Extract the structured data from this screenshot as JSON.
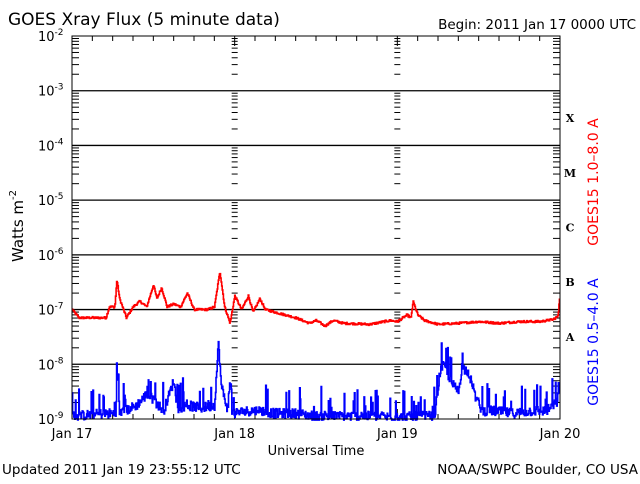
{
  "chart_data": {
    "type": "line",
    "title": "GOES Xray Flux (5 minute data)",
    "begin_label": "Begin:  2011 Jan 17 0000 UTC",
    "xlabel": "Universal Time",
    "ylabel": "Watts m",
    "ylabel_sup": "-2",
    "x_unit": "hours since 2011 Jan 17 0000 UTC",
    "xlim": [
      0,
      72
    ],
    "x_ticks": [
      {
        "h": 0,
        "label": "Jan 17"
      },
      {
        "h": 24,
        "label": "Jan 18"
      },
      {
        "h": 48,
        "label": "Jan 19"
      },
      {
        "h": 72,
        "label": "Jan 20"
      }
    ],
    "y_scale": "log",
    "ylim": [
      1e-09,
      0.01
    ],
    "y_ticks": [
      {
        "exp": -2,
        "label": "-2"
      },
      {
        "exp": -3,
        "label": "-3"
      },
      {
        "exp": -4,
        "label": "-4"
      },
      {
        "exp": -5,
        "label": "-5"
      },
      {
        "exp": -6,
        "label": "-6"
      },
      {
        "exp": -7,
        "label": "-7"
      },
      {
        "exp": -8,
        "label": "-8"
      },
      {
        "exp": -9,
        "label": "-9"
      }
    ],
    "flare_classes": [
      {
        "label": "X",
        "exp": -4
      },
      {
        "label": "M",
        "exp": -5
      },
      {
        "label": "C",
        "exp": -6
      },
      {
        "label": "B",
        "exp": -7
      },
      {
        "label": "A",
        "exp": -8
      }
    ],
    "series": [
      {
        "name": "GOES15 1.0–8.0 A",
        "color": "#ff0000",
        "noise": 0.04,
        "points_log10": [
          [
            0,
            -7.0
          ],
          [
            1,
            -7.15
          ],
          [
            5,
            -7.15
          ],
          [
            5.5,
            -6.95
          ],
          [
            6.3,
            -6.95
          ],
          [
            6.6,
            -6.45
          ],
          [
            7,
            -6.8
          ],
          [
            8,
            -7.15
          ],
          [
            9,
            -6.95
          ],
          [
            10,
            -6.85
          ],
          [
            11,
            -6.95
          ],
          [
            12,
            -6.55
          ],
          [
            12.5,
            -6.8
          ],
          [
            13.2,
            -6.6
          ],
          [
            14,
            -6.95
          ],
          [
            15,
            -6.9
          ],
          [
            16,
            -6.95
          ],
          [
            17,
            -6.7
          ],
          [
            18,
            -7.0
          ],
          [
            20,
            -7.0
          ],
          [
            21,
            -6.95
          ],
          [
            21.8,
            -6.3
          ],
          [
            22.5,
            -6.95
          ],
          [
            23.3,
            -7.25
          ],
          [
            24,
            -6.75
          ],
          [
            25,
            -7.0
          ],
          [
            26,
            -6.75
          ],
          [
            26.7,
            -7.05
          ],
          [
            27.7,
            -6.8
          ],
          [
            28.5,
            -7.0
          ],
          [
            30,
            -7.05
          ],
          [
            31.5,
            -7.1
          ],
          [
            33,
            -7.15
          ],
          [
            35,
            -7.25
          ],
          [
            36,
            -7.2
          ],
          [
            37.3,
            -7.3
          ],
          [
            38.5,
            -7.2
          ],
          [
            40,
            -7.25
          ],
          [
            44,
            -7.27
          ],
          [
            46,
            -7.22
          ],
          [
            47,
            -7.2
          ],
          [
            48,
            -7.22
          ],
          [
            49.4,
            -7.1
          ],
          [
            50,
            -7.15
          ],
          [
            50.3,
            -6.85
          ],
          [
            51,
            -7.1
          ],
          [
            52,
            -7.2
          ],
          [
            54,
            -7.27
          ],
          [
            57,
            -7.25
          ],
          [
            60,
            -7.22
          ],
          [
            63,
            -7.25
          ],
          [
            66,
            -7.22
          ],
          [
            69,
            -7.22
          ],
          [
            71,
            -7.18
          ],
          [
            71.7,
            -7.12
          ],
          [
            71.9,
            -6.78
          ],
          [
            72,
            -6.8
          ]
        ]
      },
      {
        "name": "GOES15 0.5–4.0 A",
        "color": "#0000ff",
        "noise": 0.18,
        "points_log10": [
          [
            0,
            -8.95
          ],
          [
            5,
            -8.9
          ],
          [
            6.4,
            -8.9
          ],
          [
            6.7,
            -8.15
          ],
          [
            7,
            -8.9
          ],
          [
            9.5,
            -8.75
          ],
          [
            11,
            -8.55
          ],
          [
            12,
            -8.65
          ],
          [
            13.5,
            -8.85
          ],
          [
            15,
            -8.3
          ],
          [
            15.5,
            -8.8
          ],
          [
            17,
            -8.75
          ],
          [
            19,
            -8.8
          ],
          [
            21,
            -8.75
          ],
          [
            21.6,
            -7.6
          ],
          [
            22,
            -8.4
          ],
          [
            23,
            -8.85
          ],
          [
            23.3,
            -8.3
          ],
          [
            23.6,
            -8.9
          ],
          [
            26,
            -8.85
          ],
          [
            28,
            -8.85
          ],
          [
            30,
            -8.9
          ],
          [
            33,
            -8.9
          ],
          [
            36,
            -8.95
          ],
          [
            40,
            -8.95
          ],
          [
            44,
            -8.95
          ],
          [
            48,
            -8.97
          ],
          [
            52,
            -8.95
          ],
          [
            53.5,
            -8.95
          ],
          [
            54.3,
            -8.1
          ],
          [
            55,
            -8.05
          ],
          [
            56,
            -8.35
          ],
          [
            57,
            -8.5
          ],
          [
            57.5,
            -8.05
          ],
          [
            58.5,
            -8.15
          ],
          [
            59.5,
            -8.6
          ],
          [
            60.5,
            -8.85
          ],
          [
            62,
            -8.85
          ],
          [
            65,
            -8.9
          ],
          [
            68,
            -8.85
          ],
          [
            70,
            -8.85
          ],
          [
            71.5,
            -8.7
          ],
          [
            71.8,
            -8.35
          ],
          [
            72,
            -8.8
          ]
        ]
      }
    ]
  },
  "footer": {
    "updated": "Updated 2011 Jan 19 23:55:12 UTC",
    "source": "NOAA/SWPC Boulder, CO USA"
  }
}
